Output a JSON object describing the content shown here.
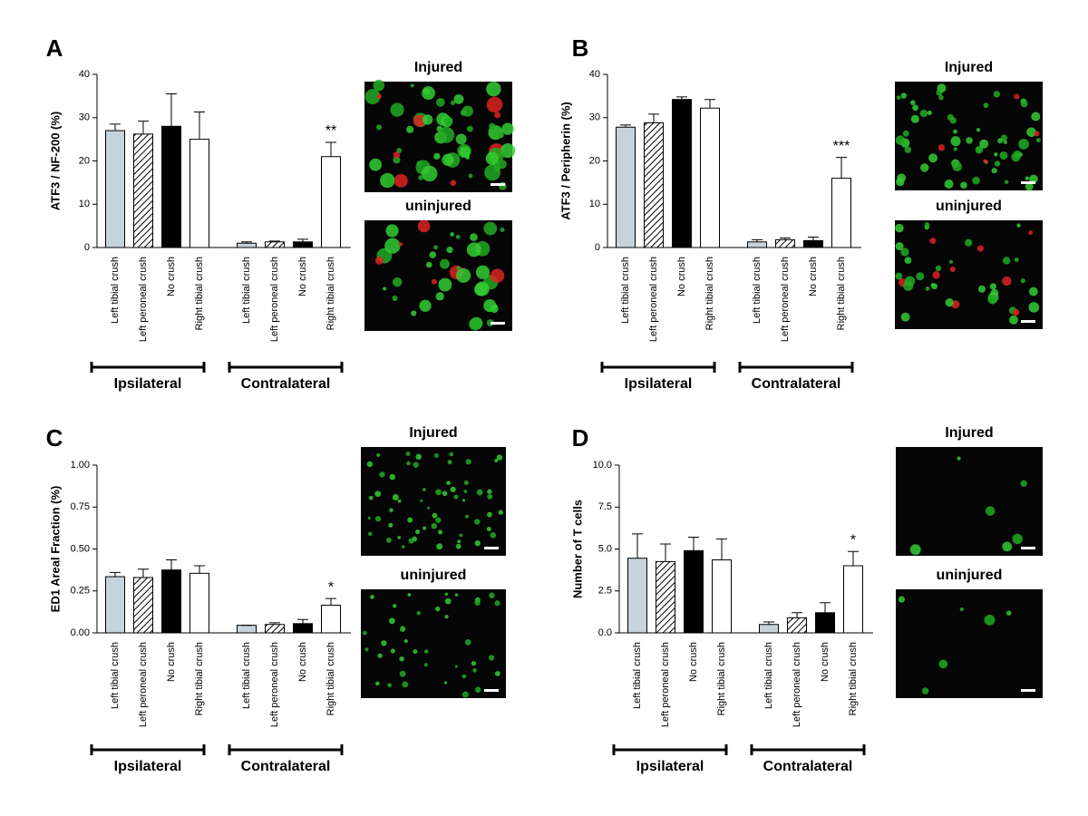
{
  "chart_data": [
    {
      "type": "bar",
      "panel": "A",
      "ylabel": "ATF3 / NF-200 (%)",
      "categories": [
        "Left tibial crush",
        "Left peroneal crush",
        "No crush",
        "Right tibial crush",
        "Left tibial crush",
        "Left peroneal crush",
        "No crush",
        "Right tibial crush"
      ],
      "values": [
        27,
        26.2,
        28,
        25,
        1,
        1.3,
        1.3,
        21
      ],
      "errors": [
        1.5,
        3,
        7.5,
        6.3,
        0.3,
        0.2,
        0.6,
        3.3
      ],
      "significance": [
        null,
        null,
        null,
        null,
        null,
        null,
        null,
        "**"
      ],
      "fills": [
        "#c5d3dc",
        "hatched",
        "#000000",
        "#ffffff",
        "#c5d3dc",
        "hatched",
        "#000000",
        "#ffffff"
      ],
      "groups": [
        "Ipsilateral",
        "Contralateral"
      ],
      "images": [
        "Injured",
        "uninjured"
      ],
      "ylim": [
        0,
        40
      ],
      "yticks": [
        0,
        10,
        20,
        30,
        40
      ]
    },
    {
      "type": "bar",
      "panel": "B",
      "ylabel": "ATF3 / Peripherin (%)",
      "categories": [
        "Left tibial crush",
        "Left peroneal crush",
        "No crush",
        "Right tibial crush",
        "Left tibial crush",
        "Left peroneal crush",
        "No crush",
        "Right tibial crush"
      ],
      "values": [
        27.8,
        28.8,
        34.2,
        32.2,
        1.3,
        1.8,
        1.6,
        16
      ],
      "errors": [
        0.5,
        2,
        0.6,
        2,
        0.5,
        0.4,
        0.8,
        4.8
      ],
      "significance": [
        null,
        null,
        null,
        null,
        null,
        null,
        null,
        "***"
      ],
      "fills": [
        "#c5d3dc",
        "hatched",
        "#000000",
        "#ffffff",
        "#c5d3dc",
        "hatched",
        "#000000",
        "#ffffff"
      ],
      "groups": [
        "Ipsilateral",
        "Contralateral"
      ],
      "images": [
        "Injured",
        "uninjured"
      ],
      "ylim": [
        0,
        40
      ],
      "yticks": [
        0,
        10,
        20,
        30,
        40
      ]
    },
    {
      "type": "bar",
      "panel": "C",
      "ylabel": "ED1 Areal Fraction (%)",
      "categories": [
        "Left tibial crush",
        "Left peroneal crush",
        "No crush",
        "Right tibial crush",
        "Left tibial crush",
        "Left peroneal crush",
        "No crush",
        "Right tibial crush"
      ],
      "values": [
        0.335,
        0.33,
        0.375,
        0.355,
        0.045,
        0.05,
        0.055,
        0.165
      ],
      "errors": [
        0.025,
        0.05,
        0.06,
        0.045,
        0,
        0.01,
        0.025,
        0.04
      ],
      "significance": [
        null,
        null,
        null,
        null,
        null,
        null,
        null,
        "*"
      ],
      "fills": [
        "#c5d3dc",
        "hatched",
        "#000000",
        "#ffffff",
        "#c5d3dc",
        "hatched",
        "#000000",
        "#ffffff"
      ],
      "groups": [
        "Ipsilateral",
        "Contralateral"
      ],
      "images": [
        "Injured",
        "uninjured"
      ],
      "ylim": [
        0,
        1
      ],
      "yticks": [
        {
          "value": 0,
          "label": "0.00"
        },
        {
          "value": 0.25,
          "label": "0.25"
        },
        {
          "value": 0.5,
          "label": "0.50"
        },
        {
          "value": 0.75,
          "label": "0.75"
        },
        {
          "value": 1,
          "label": "1.00"
        }
      ]
    },
    {
      "type": "bar",
      "panel": "D",
      "ylabel": "Number of T cells",
      "categories": [
        "Left tibial crush",
        "Left peroneal crush",
        "No crush",
        "Right tibial crush",
        "Left tibial crush",
        "Left peroneal crush",
        "No crush",
        "Right tibial crush"
      ],
      "values": [
        4.45,
        4.25,
        4.9,
        4.35,
        0.5,
        0.9,
        1.2,
        4.0
      ],
      "errors": [
        1.45,
        1.05,
        0.8,
        1.25,
        0.15,
        0.3,
        0.6,
        0.85
      ],
      "significance": [
        null,
        null,
        null,
        null,
        null,
        null,
        null,
        "*"
      ],
      "fills": [
        "#c5d3dc",
        "hatched",
        "#000000",
        "#ffffff",
        "#c5d3dc",
        "hatched",
        "#000000",
        "#ffffff"
      ],
      "groups": [
        "Ipsilateral",
        "Contralateral"
      ],
      "images": [
        "Injured",
        "uninjured"
      ],
      "ylim": [
        0,
        10
      ],
      "yticks": [
        {
          "value": 0,
          "label": "0.0"
        },
        {
          "value": 2.5,
          "label": "2.5"
        },
        {
          "value": 5,
          "label": "5.0"
        },
        {
          "value": 7.5,
          "label": "7.5"
        },
        {
          "value": 10,
          "label": "10.0"
        }
      ]
    }
  ]
}
